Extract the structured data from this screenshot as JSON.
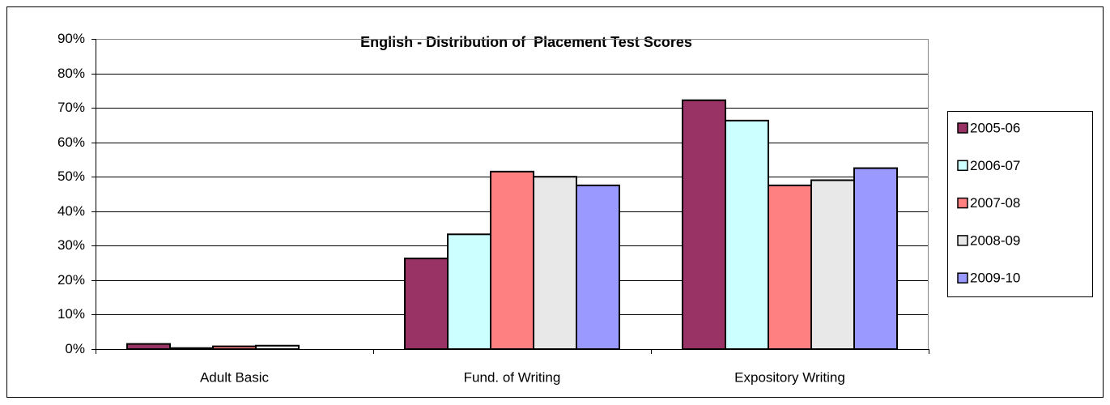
{
  "chart_data": {
    "type": "bar",
    "title": "English - Distribution of  Placement Test Scores",
    "categories": [
      "Adult Basic",
      "Fund. of Writing",
      "Expository Writing"
    ],
    "series": [
      {
        "name": "2005-06",
        "color": "#993366",
        "values": [
          1.5,
          26.3,
          72.2
        ]
      },
      {
        "name": "2006-07",
        "color": "#ccffff",
        "values": [
          0.3,
          33.3,
          66.3
        ]
      },
      {
        "name": "2007-08",
        "color": "#ff8080",
        "values": [
          0.8,
          51.5,
          47.5
        ]
      },
      {
        "name": "2008-09",
        "color": "#e8e8e8",
        "values": [
          1.0,
          50.0,
          49.0
        ]
      },
      {
        "name": "2009-10",
        "color": "#9999ff",
        "values": [
          0,
          47.5,
          52.5
        ]
      }
    ],
    "ylim": [
      0,
      90
    ],
    "yticks": [
      {
        "value": 0,
        "label": "0%"
      },
      {
        "value": 10,
        "label": "10%"
      },
      {
        "value": 20,
        "label": "20%"
      },
      {
        "value": 30,
        "label": "30%"
      },
      {
        "value": 40,
        "label": "40%"
      },
      {
        "value": 50,
        "label": "50%"
      },
      {
        "value": 60,
        "label": "60%"
      },
      {
        "value": 70,
        "label": "70%"
      },
      {
        "value": 80,
        "label": "80%"
      },
      {
        "value": 90,
        "label": "90%"
      }
    ],
    "grid": true,
    "legend": "right"
  }
}
